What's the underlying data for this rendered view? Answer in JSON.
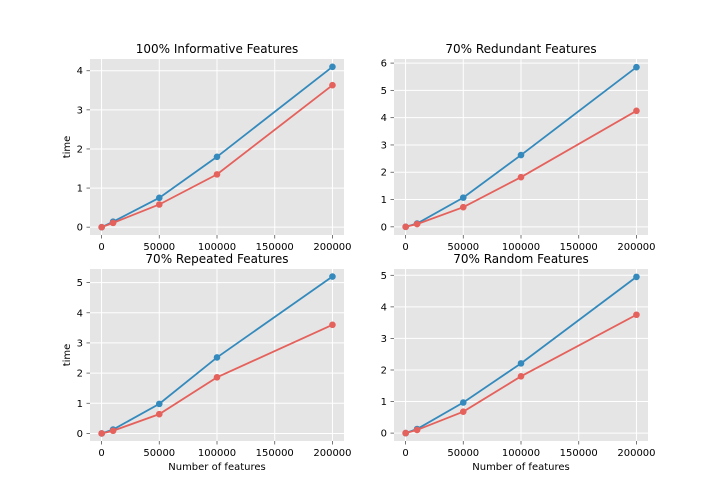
{
  "chart_data": [
    {
      "type": "line",
      "title": "100% Informative Features",
      "xlabel": "",
      "ylabel": "time",
      "x": [
        100,
        10000,
        50000,
        100000,
        200000
      ],
      "xticks": [
        0,
        50000,
        100000,
        150000,
        200000
      ],
      "xlim": [
        -10000,
        210000
      ],
      "yticks": [
        0,
        1,
        2,
        3,
        4
      ],
      "ylim": [
        -0.2,
        4.3
      ],
      "series": [
        {
          "color": "#348abd",
          "values": [
            0.0,
            0.14,
            0.75,
            1.8,
            4.1
          ]
        },
        {
          "color": "#e5615c",
          "values": [
            0.0,
            0.11,
            0.58,
            1.35,
            3.63
          ]
        }
      ],
      "grid": true
    },
    {
      "type": "line",
      "title": "70% Redundant Features",
      "xlabel": "",
      "ylabel": "",
      "x": [
        100,
        10000,
        50000,
        100000,
        200000
      ],
      "xticks": [
        0,
        50000,
        100000,
        150000,
        200000
      ],
      "xlim": [
        -10000,
        210000
      ],
      "yticks": [
        0,
        1,
        2,
        3,
        4,
        5,
        6
      ],
      "ylim": [
        -0.3,
        6.15
      ],
      "series": [
        {
          "color": "#348abd",
          "values": [
            0.0,
            0.12,
            1.07,
            2.63,
            5.85
          ]
        },
        {
          "color": "#e5615c",
          "values": [
            0.0,
            0.1,
            0.72,
            1.82,
            4.25
          ]
        }
      ],
      "grid": true
    },
    {
      "type": "line",
      "title": "70% Repeated Features",
      "xlabel": "Number of features",
      "ylabel": "time",
      "x": [
        100,
        10000,
        50000,
        100000,
        200000
      ],
      "xticks": [
        0,
        50000,
        100000,
        150000,
        200000
      ],
      "xlim": [
        -10000,
        210000
      ],
      "yticks": [
        0,
        1,
        2,
        3,
        4,
        5
      ],
      "ylim": [
        -0.25,
        5.45
      ],
      "series": [
        {
          "color": "#348abd",
          "values": [
            0.0,
            0.13,
            0.98,
            2.52,
            5.2
          ]
        },
        {
          "color": "#e5615c",
          "values": [
            0.0,
            0.09,
            0.64,
            1.86,
            3.6
          ]
        }
      ],
      "grid": true
    },
    {
      "type": "line",
      "title": "70% Random Features",
      "xlabel": "Number of features",
      "ylabel": "",
      "x": [
        100,
        10000,
        50000,
        100000,
        200000
      ],
      "xticks": [
        0,
        50000,
        100000,
        150000,
        200000
      ],
      "xlim": [
        -10000,
        210000
      ],
      "yticks": [
        0,
        1,
        2,
        3,
        4,
        5
      ],
      "ylim": [
        -0.25,
        5.2
      ],
      "series": [
        {
          "color": "#348abd",
          "values": [
            0.0,
            0.13,
            0.97,
            2.21,
            4.95
          ]
        },
        {
          "color": "#e5615c",
          "values": [
            0.0,
            0.1,
            0.68,
            1.8,
            3.75
          ]
        }
      ],
      "grid": true
    }
  ]
}
